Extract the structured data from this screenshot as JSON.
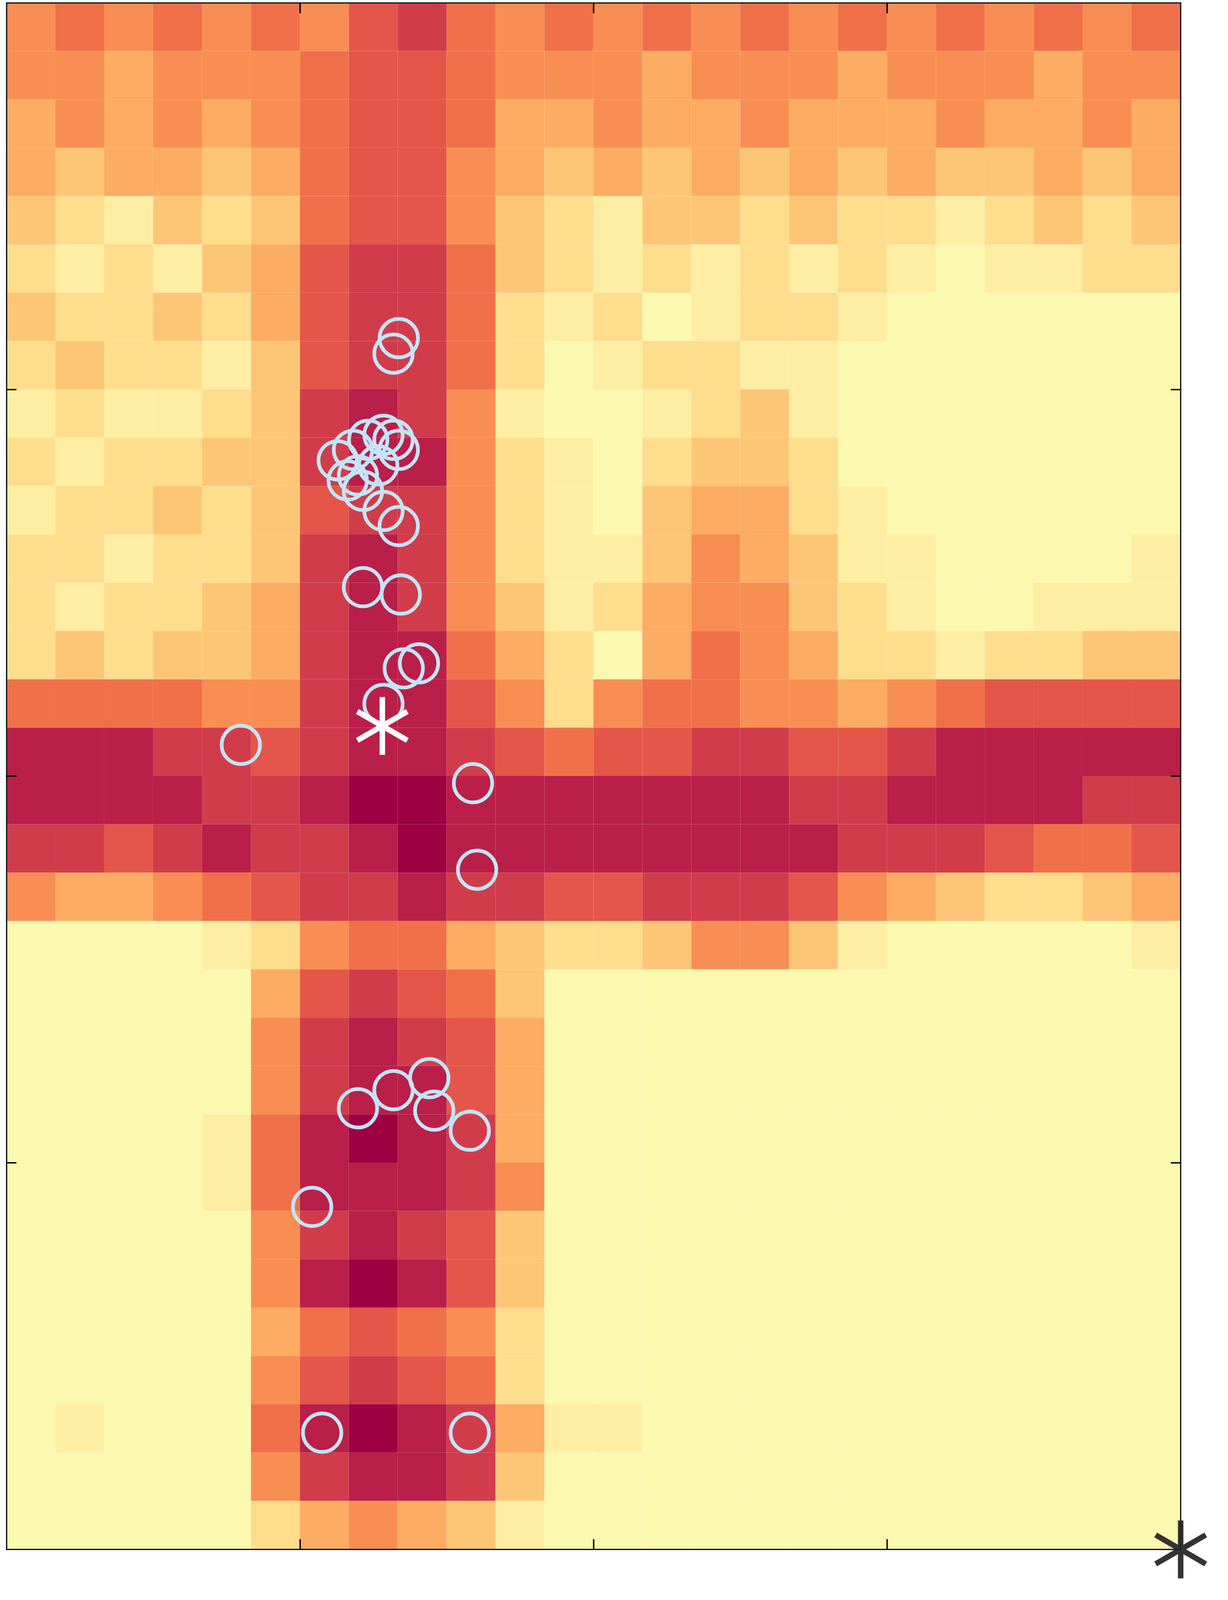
{
  "chart_data": {
    "type": "heatmap",
    "xlim": [
      0,
      4
    ],
    "ylim": [
      0,
      4
    ],
    "xticks": [
      1,
      2,
      3
    ],
    "yticks": [
      1,
      2,
      3
    ],
    "tick_labels": false,
    "cells": [
      [
        0.5,
        0.6,
        0.5,
        0.6,
        0.5,
        0.6,
        0.5,
        0.7,
        0.8,
        0.6,
        0.5,
        0.6,
        0.5,
        0.6,
        0.5,
        0.6,
        0.5,
        0.6,
        0.5,
        0.6,
        0.5,
        0.6,
        0.5,
        0.6
      ],
      [
        0.5,
        0.5,
        0.4,
        0.5,
        0.5,
        0.5,
        0.6,
        0.7,
        0.7,
        0.6,
        0.5,
        0.5,
        0.5,
        0.4,
        0.5,
        0.5,
        0.5,
        0.4,
        0.5,
        0.5,
        0.5,
        0.4,
        0.5,
        0.5
      ],
      [
        0.4,
        0.5,
        0.4,
        0.5,
        0.4,
        0.5,
        0.6,
        0.7,
        0.7,
        0.6,
        0.4,
        0.4,
        0.5,
        0.4,
        0.4,
        0.5,
        0.4,
        0.4,
        0.4,
        0.5,
        0.4,
        0.4,
        0.5,
        0.4
      ],
      [
        0.4,
        0.3,
        0.4,
        0.4,
        0.3,
        0.4,
        0.6,
        0.7,
        0.7,
        0.5,
        0.4,
        0.3,
        0.4,
        0.3,
        0.4,
        0.3,
        0.4,
        0.3,
        0.4,
        0.3,
        0.3,
        0.4,
        0.3,
        0.4
      ],
      [
        0.3,
        0.2,
        0.1,
        0.3,
        0.2,
        0.3,
        0.6,
        0.7,
        0.7,
        0.5,
        0.3,
        0.2,
        0.1,
        0.3,
        0.3,
        0.2,
        0.3,
        0.2,
        0.2,
        0.1,
        0.2,
        0.3,
        0.2,
        0.3
      ],
      [
        0.2,
        0.1,
        0.2,
        0.1,
        0.3,
        0.4,
        0.7,
        0.8,
        0.8,
        0.6,
        0.3,
        0.2,
        0.1,
        0.2,
        0.1,
        0.2,
        0.1,
        0.2,
        0.1,
        0,
        0.1,
        0.1,
        0.2,
        0.2
      ],
      [
        0.3,
        0.2,
        0.2,
        0.3,
        0.2,
        0.4,
        0.7,
        0.8,
        0.8,
        0.6,
        0.2,
        0.1,
        0.2,
        0,
        0.1,
        0.2,
        0.2,
        0.1,
        0,
        0,
        0,
        0,
        0,
        0
      ],
      [
        0.2,
        0.3,
        0.2,
        0.2,
        0.1,
        0.3,
        0.7,
        0.8,
        0.8,
        0.6,
        0.2,
        0,
        0.1,
        0.2,
        0.2,
        0.1,
        0.1,
        0,
        0,
        0,
        0,
        0,
        0,
        0
      ],
      [
        0.1,
        0.2,
        0.1,
        0.1,
        0.2,
        0.3,
        0.8,
        0.9,
        0.8,
        0.5,
        0.1,
        0,
        0,
        0.1,
        0.2,
        0.3,
        0.1,
        0,
        0,
        0,
        0,
        0,
        0,
        0
      ],
      [
        0.2,
        0.1,
        0.2,
        0.2,
        0.3,
        0.3,
        0.8,
        0.9,
        0.9,
        0.5,
        0.2,
        0.1,
        0,
        0.2,
        0.3,
        0.3,
        0.2,
        0,
        0,
        0,
        0,
        0,
        0,
        0
      ],
      [
        0.1,
        0.2,
        0.2,
        0.3,
        0.2,
        0.3,
        0.7,
        0.8,
        0.8,
        0.5,
        0.2,
        0.1,
        0,
        0.3,
        0.4,
        0.4,
        0.2,
        0.1,
        0,
        0,
        0,
        0,
        0,
        0
      ],
      [
        0.2,
        0.2,
        0.1,
        0.2,
        0.2,
        0.3,
        0.8,
        0.9,
        0.8,
        0.5,
        0.2,
        0.1,
        0.1,
        0.3,
        0.5,
        0.4,
        0.3,
        0.1,
        0.1,
        0,
        0,
        0,
        0,
        0.1
      ],
      [
        0.2,
        0.1,
        0.2,
        0.2,
        0.3,
        0.4,
        0.8,
        0.9,
        0.8,
        0.5,
        0.3,
        0.1,
        0.2,
        0.4,
        0.5,
        0.5,
        0.3,
        0.2,
        0.1,
        0,
        0,
        0.1,
        0.1,
        0.1
      ],
      [
        0.2,
        0.3,
        0.2,
        0.3,
        0.3,
        0.4,
        0.8,
        0.9,
        0.9,
        0.6,
        0.4,
        0.2,
        0,
        0.4,
        0.6,
        0.5,
        0.4,
        0.2,
        0.2,
        0.1,
        0.2,
        0.2,
        0.3,
        0.3
      ],
      [
        0.6,
        0.6,
        0.6,
        0.6,
        0.5,
        0.5,
        0.8,
        0.9,
        0.9,
        0.7,
        0.5,
        0.2,
        0.5,
        0.6,
        0.6,
        0.5,
        0.5,
        0.4,
        0.5,
        0.6,
        0.7,
        0.7,
        0.7,
        0.7
      ],
      [
        0.9,
        0.9,
        0.9,
        0.8,
        0.8,
        0.7,
        0.8,
        0.9,
        0.9,
        0.8,
        0.7,
        0.6,
        0.7,
        0.7,
        0.8,
        0.8,
        0.7,
        0.7,
        0.8,
        0.9,
        0.9,
        0.9,
        0.9,
        0.9
      ],
      [
        0.9,
        0.9,
        0.9,
        0.9,
        0.8,
        0.8,
        0.9,
        1,
        1,
        0.9,
        0.9,
        0.9,
        0.9,
        0.9,
        0.9,
        0.9,
        0.8,
        0.8,
        0.9,
        0.9,
        0.9,
        0.9,
        0.8,
        0.8
      ],
      [
        0.8,
        0.8,
        0.7,
        0.8,
        0.9,
        0.8,
        0.8,
        0.9,
        1,
        0.9,
        0.9,
        0.9,
        0.9,
        0.9,
        0.9,
        0.9,
        0.9,
        0.8,
        0.8,
        0.8,
        0.7,
        0.6,
        0.6,
        0.7
      ],
      [
        0.5,
        0.4,
        0.4,
        0.5,
        0.6,
        0.7,
        0.8,
        0.8,
        0.9,
        0.8,
        0.8,
        0.7,
        0.7,
        0.8,
        0.8,
        0.8,
        0.7,
        0.5,
        0.4,
        0.3,
        0.2,
        0.2,
        0.3,
        0.4
      ],
      [
        0,
        0,
        0,
        0,
        0.1,
        0.2,
        0.5,
        0.6,
        0.6,
        0.4,
        0.3,
        0.2,
        0.2,
        0.3,
        0.5,
        0.5,
        0.3,
        0.1,
        0,
        0,
        0,
        0,
        0,
        0.1
      ],
      [
        0,
        0,
        0,
        0,
        0,
        0.4,
        0.7,
        0.8,
        0.7,
        0.6,
        0.3,
        0,
        0,
        0,
        0,
        0,
        0,
        0,
        0,
        0,
        0,
        0,
        0,
        0
      ],
      [
        0,
        0,
        0,
        0,
        0,
        0.5,
        0.8,
        0.9,
        0.8,
        0.7,
        0.4,
        0,
        0,
        0,
        0,
        0,
        0,
        0,
        0,
        0,
        0,
        0,
        0,
        0
      ],
      [
        0,
        0,
        0,
        0,
        0,
        0.5,
        0.8,
        0.9,
        0.9,
        0.7,
        0.4,
        0,
        0,
        0,
        0,
        0,
        0,
        0,
        0,
        0,
        0,
        0,
        0,
        0
      ],
      [
        0,
        0,
        0,
        0,
        0.1,
        0.6,
        0.9,
        1,
        0.9,
        0.8,
        0.4,
        0,
        0,
        0,
        0,
        0,
        0,
        0,
        0,
        0,
        0,
        0,
        0,
        0
      ],
      [
        0,
        0,
        0,
        0,
        0.1,
        0.6,
        0.9,
        0.9,
        0.9,
        0.8,
        0.5,
        0,
        0,
        0,
        0,
        0,
        0,
        0,
        0,
        0,
        0,
        0,
        0,
        0
      ],
      [
        0,
        0,
        0,
        0,
        0,
        0.5,
        0.8,
        0.9,
        0.8,
        0.7,
        0.3,
        0,
        0,
        0,
        0,
        0,
        0,
        0,
        0,
        0,
        0,
        0,
        0,
        0
      ],
      [
        0,
        0,
        0,
        0,
        0,
        0.5,
        0.9,
        1,
        0.9,
        0.7,
        0.3,
        0,
        0,
        0,
        0,
        0,
        0,
        0,
        0,
        0,
        0,
        0,
        0,
        0
      ],
      [
        0,
        0,
        0,
        0,
        0,
        0.4,
        0.6,
        0.7,
        0.6,
        0.5,
        0.2,
        0,
        0,
        0,
        0,
        0,
        0,
        0,
        0,
        0,
        0,
        0,
        0,
        0
      ],
      [
        0,
        0,
        0,
        0,
        0,
        0.5,
        0.7,
        0.8,
        0.7,
        0.6,
        0.2,
        0,
        0,
        0,
        0,
        0,
        0,
        0,
        0,
        0,
        0,
        0,
        0,
        0
      ],
      [
        0,
        0.1,
        0,
        0,
        0,
        0.6,
        0.9,
        1,
        0.9,
        0.8,
        0.4,
        0.1,
        0.1,
        0,
        0,
        0,
        0,
        0,
        0,
        0,
        0,
        0,
        0,
        0
      ],
      [
        0,
        0,
        0,
        0,
        0,
        0.5,
        0.8,
        0.9,
        0.9,
        0.8,
        0.3,
        0,
        0,
        0,
        0,
        0,
        0,
        0,
        0,
        0,
        0,
        0,
        0,
        0
      ],
      [
        0,
        0,
        0,
        0,
        0,
        0.2,
        0.4,
        0.5,
        0.4,
        0.3,
        0.1,
        0,
        0,
        0,
        0,
        0,
        0,
        0,
        0,
        0,
        0,
        0,
        0,
        0
      ]
    ],
    "series": [
      {
        "type": "scatter",
        "marker": "circle",
        "color": "#c3e5f7",
        "x": [
          1.336,
          1.318,
          1.128,
          1.18,
          1.232,
          1.284,
          1.336,
          1.197,
          1.266,
          1.318,
          1.162,
          1.214,
          1.284,
          1.336,
          1.214,
          1.343,
          1.405,
          1.353,
          1.284,
          0.798,
          1.589,
          1.603,
          1.197,
          1.318,
          1.44,
          1.457,
          1.578,
          1.041,
          1.075,
          1.578
        ],
        "y": [
          3.133,
          3.093,
          2.817,
          2.844,
          2.87,
          2.883,
          2.844,
          2.778,
          2.804,
          2.87,
          2.765,
          2.738,
          2.686,
          2.647,
          2.489,
          2.47,
          2.292,
          2.279,
          2.187,
          2.081,
          1.982,
          1.758,
          1.141,
          1.188,
          1.219,
          1.135,
          1.083,
          0.886,
          0.302,
          0.302
        ]
      },
      {
        "type": "scatter",
        "marker": "asterisk",
        "color": "#ffffff",
        "x": [
          1.28
        ],
        "y": [
          2.13
        ]
      },
      {
        "type": "scatter",
        "marker": "asterisk",
        "color": "#333333",
        "x": [
          4
        ],
        "y": [
          0
        ]
      }
    ]
  }
}
